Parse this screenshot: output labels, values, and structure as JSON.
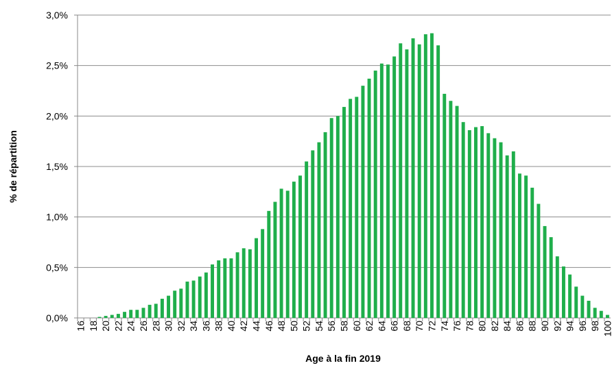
{
  "chart_data": {
    "type": "bar",
    "xlabel": "Age à la fin 2019",
    "ylabel": "% de répartition",
    "color": "#1fae4b",
    "grid": true,
    "categories": [
      "16",
      null,
      "18",
      null,
      "20",
      null,
      "22",
      null,
      "24",
      null,
      "26",
      null,
      "28",
      null,
      "30",
      null,
      "32",
      null,
      "34",
      null,
      "36",
      null,
      "38",
      null,
      "40",
      null,
      "42",
      null,
      "44",
      null,
      "46",
      null,
      "48",
      null,
      "50",
      null,
      "52",
      null,
      "54",
      null,
      "56",
      null,
      "58",
      null,
      "60",
      null,
      "62",
      null,
      "64",
      null,
      "66",
      null,
      "68",
      null,
      "70",
      null,
      "72",
      null,
      "74",
      null,
      "76",
      null,
      "78",
      null,
      "80",
      null,
      "82",
      null,
      "84",
      null,
      "86",
      null,
      "88",
      null,
      "90",
      null,
      "92",
      null,
      "94",
      null,
      "96",
      null,
      "98",
      null,
      "100"
    ],
    "values": [
      0,
      0,
      0,
      0.01,
      0.02,
      0.03,
      0.04,
      0.06,
      0.08,
      0.08,
      0.1,
      0.13,
      0.14,
      0.19,
      0.22,
      0.27,
      0.29,
      0.36,
      0.37,
      0.41,
      0.45,
      0.53,
      0.57,
      0.59,
      0.59,
      0.65,
      0.69,
      0.68,
      0.79,
      0.88,
      1.06,
      1.15,
      1.28,
      1.26,
      1.35,
      1.41,
      1.55,
      1.66,
      1.74,
      1.84,
      1.98,
      2.0,
      2.09,
      2.17,
      2.19,
      2.3,
      2.37,
      2.45,
      2.52,
      2.51,
      2.59,
      2.72,
      2.66,
      2.77,
      2.71,
      2.81,
      2.82,
      2.7,
      2.22,
      2.15,
      2.1,
      1.94,
      1.86,
      1.89,
      1.9,
      1.83,
      1.78,
      1.74,
      1.61,
      1.65,
      1.43,
      1.41,
      1.29,
      1.13,
      0.91,
      0.8,
      0.61,
      0.51,
      0.43,
      0.31,
      0.22,
      0.17,
      0.1,
      0.07,
      0.03
    ],
    "ylim": [
      0,
      3
    ],
    "yticks": [
      {
        "value": 0,
        "label": "0,0%"
      },
      {
        "value": 0.5,
        "label": "0,5%"
      },
      {
        "value": 1,
        "label": "1,0%"
      },
      {
        "value": 1.5,
        "label": "1,5%"
      },
      {
        "value": 2,
        "label": "2,0%"
      },
      {
        "value": 2.5,
        "label": "2,5%"
      },
      {
        "value": 3,
        "label": "3,0%"
      }
    ]
  }
}
